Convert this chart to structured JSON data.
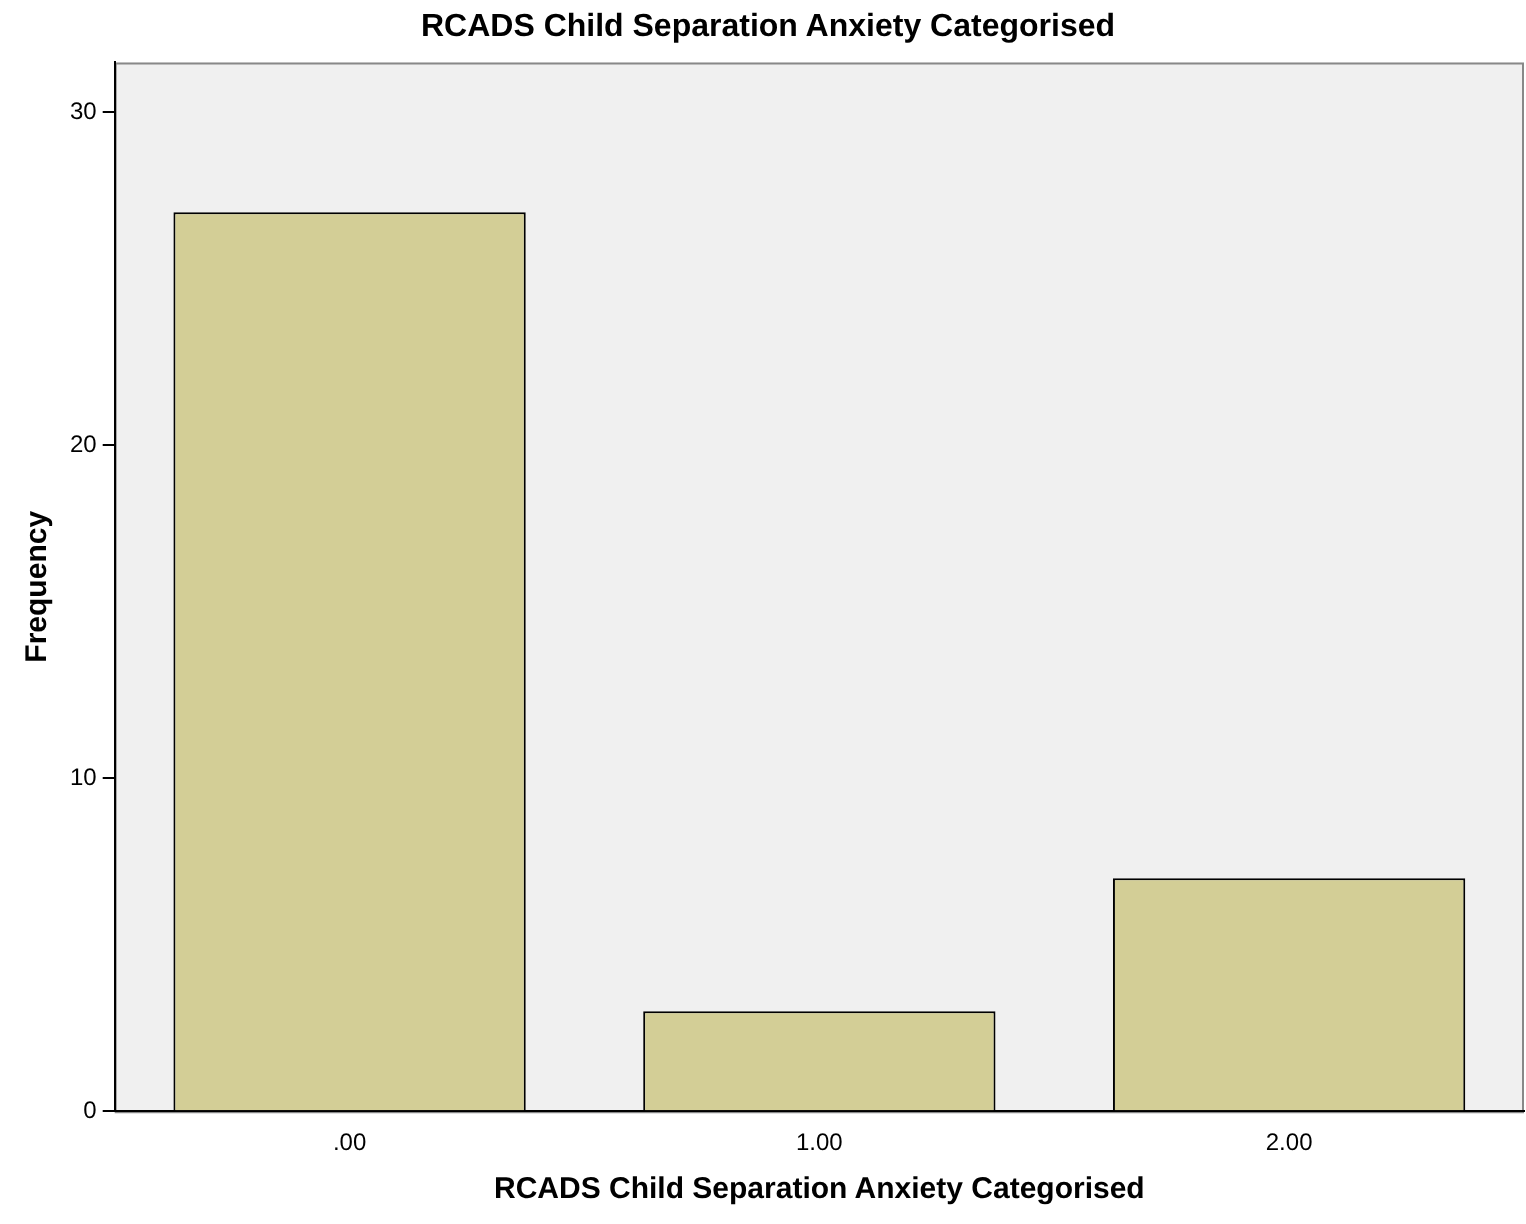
{
  "chart_data": {
    "type": "bar",
    "title": "RCADS Child Separation Anxiety Categorised",
    "xlabel": "RCADS Child Separation Anxiety Categorised",
    "ylabel": "Frequency",
    "categories": [
      ".00",
      "1.00",
      "2.00"
    ],
    "values": [
      27,
      3,
      7
    ],
    "color": "#d3ce96",
    "ylim": [
      0,
      31.5
    ],
    "yticks": [
      0,
      10,
      20,
      30
    ],
    "grid": false,
    "legend": false
  }
}
